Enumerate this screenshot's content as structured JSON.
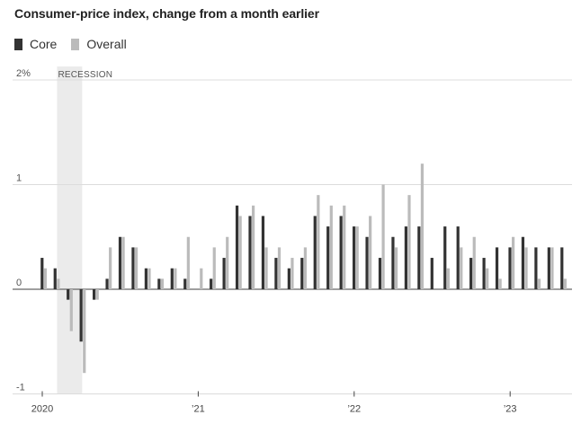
{
  "title": "Consumer-price index, change from a month earlier",
  "chart_data": {
    "type": "bar",
    "title": "Consumer-price index, change from a month earlier",
    "ylim": [
      -1,
      2
    ],
    "y_ticks": [
      {
        "value": 2,
        "label": "2%"
      },
      {
        "value": 1,
        "label": "1"
      },
      {
        "value": 0,
        "label": "0"
      },
      {
        "value": -1,
        "label": "-1"
      }
    ],
    "x_start": "2020-01",
    "x_ticks": [
      {
        "month_index": 0,
        "label": "2020"
      },
      {
        "month_index": 12,
        "label": "’21"
      },
      {
        "month_index": 24,
        "label": "’22"
      },
      {
        "month_index": 36,
        "label": "’23"
      }
    ],
    "annotation": {
      "label": "RECESSION",
      "from_month_index": 1,
      "to_month_index": 3
    },
    "months": [
      "2020-01",
      "2020-02",
      "2020-03",
      "2020-04",
      "2020-05",
      "2020-06",
      "2020-07",
      "2020-08",
      "2020-09",
      "2020-10",
      "2020-11",
      "2020-12",
      "2021-01",
      "2021-02",
      "2021-03",
      "2021-04",
      "2021-05",
      "2021-06",
      "2021-07",
      "2021-08",
      "2021-09",
      "2021-10",
      "2021-11",
      "2021-12",
      "2022-01",
      "2022-02",
      "2022-03",
      "2022-04",
      "2022-05",
      "2022-06",
      "2022-07",
      "2022-08",
      "2022-09",
      "2022-10",
      "2022-11",
      "2022-12",
      "2023-01",
      "2023-02",
      "2023-03",
      "2023-04",
      "2023-05"
    ],
    "series": [
      {
        "name": "Core",
        "color": "#333333",
        "values": [
          0.3,
          0.2,
          -0.1,
          -0.5,
          -0.1,
          0.1,
          0.5,
          0.4,
          0.2,
          0.1,
          0.2,
          0.1,
          0.0,
          0.1,
          0.3,
          0.8,
          0.7,
          0.7,
          0.3,
          0.2,
          0.3,
          0.7,
          0.6,
          0.7,
          0.6,
          0.5,
          0.3,
          0.5,
          0.6,
          0.6,
          0.3,
          0.6,
          0.6,
          0.3,
          0.3,
          0.4,
          0.4,
          0.5,
          0.4,
          0.4,
          0.4
        ]
      },
      {
        "name": "Overall",
        "color": "#bbbbbb",
        "values": [
          0.2,
          0.1,
          -0.4,
          -0.8,
          -0.1,
          0.4,
          0.5,
          0.4,
          0.2,
          0.1,
          0.2,
          0.5,
          0.2,
          0.4,
          0.5,
          0.7,
          0.8,
          0.4,
          0.4,
          0.3,
          0.4,
          0.9,
          0.8,
          0.8,
          0.6,
          0.7,
          1.0,
          0.4,
          0.9,
          1.2,
          0.0,
          0.2,
          0.4,
          0.5,
          0.2,
          0.1,
          0.5,
          0.4,
          0.1,
          0.4,
          0.1
        ]
      }
    ],
    "grid": true,
    "legend_position": "top-left"
  }
}
